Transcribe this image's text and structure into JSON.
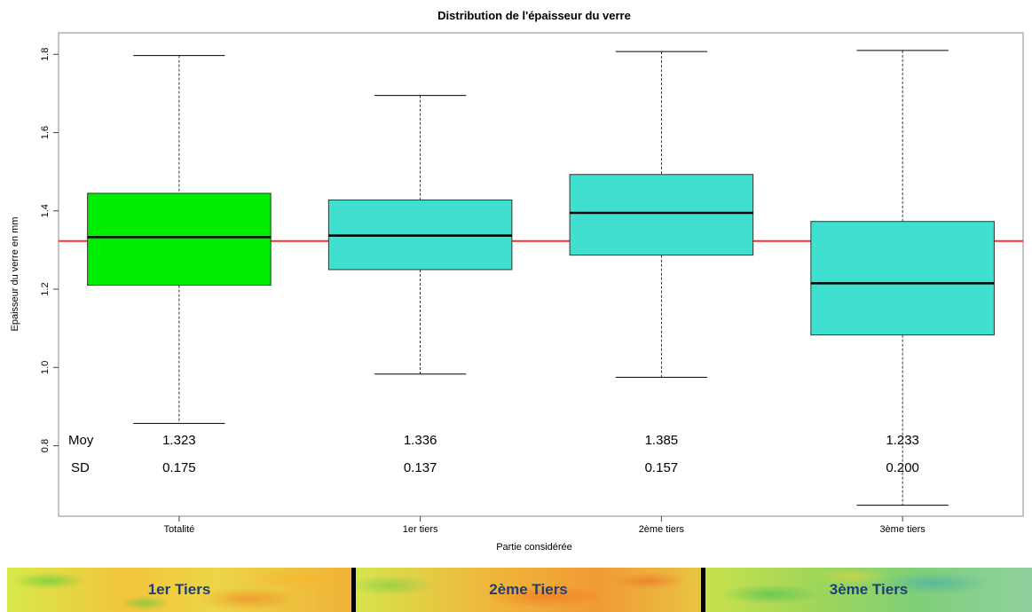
{
  "chart_data": {
    "type": "box",
    "title": "Distribution de l'épaisseur du verre",
    "xlabel": "Partie considérée",
    "ylabel": "Epaisseur du verre en mm",
    "ylim": [
      0.62,
      1.855
    ],
    "yticks": [
      0.8,
      1.0,
      1.2,
      1.4,
      1.6,
      1.8
    ],
    "yticklabels": [
      "0.8",
      "1.0",
      "1.2",
      "1.4",
      "1.6",
      "1.8"
    ],
    "reference_line": {
      "value": 1.323,
      "color": "#ff2a2a"
    },
    "stat_labels": {
      "mean": "Moy",
      "sd": "SD"
    },
    "boxes": [
      {
        "category": "Totalité",
        "min": 0.857,
        "q1": 1.21,
        "median": 1.333,
        "q3": 1.445,
        "max": 1.797,
        "mean": "1.323",
        "sd": "0.175",
        "color": "#00ee00"
      },
      {
        "category": "1er tiers",
        "min": 0.983,
        "q1": 1.25,
        "median": 1.337,
        "q3": 1.428,
        "max": 1.695,
        "mean": "1.336",
        "sd": "0.137",
        "color": "#40e0d0"
      },
      {
        "category": "2ème tiers",
        "min": 0.975,
        "q1": 1.287,
        "median": 1.395,
        "q3": 1.493,
        "max": 1.807,
        "mean": "1.385",
        "sd": "0.157",
        "color": "#40e0d0"
      },
      {
        "category": "3ème tiers",
        "min": 0.648,
        "q1": 1.083,
        "median": 1.215,
        "q3": 1.373,
        "max": 1.81,
        "mean": "1.233",
        "sd": "0.200",
        "color": "#40e0d0"
      }
    ]
  },
  "strip": {
    "labels": [
      "1er Tiers",
      "2ème Tiers",
      "3ème Tiers"
    ]
  }
}
